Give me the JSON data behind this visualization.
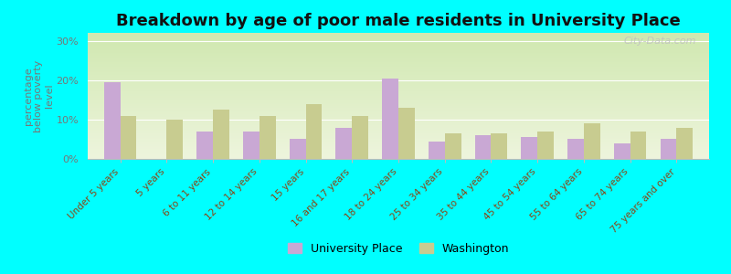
{
  "title": "Breakdown by age of poor male residents in University Place",
  "categories": [
    "Under 5 years",
    "5 years",
    "6 to 11 years",
    "12 to 14 years",
    "15 years",
    "16 and 17 years",
    "18 to 24 years",
    "25 to 34 years",
    "35 to 44 years",
    "45 to 54 years",
    "55 to 64 years",
    "65 to 74 years",
    "75 years and over"
  ],
  "university_place": [
    19.5,
    0.0,
    7.0,
    7.0,
    5.0,
    8.0,
    20.5,
    4.5,
    6.0,
    5.5,
    5.0,
    4.0,
    5.0
  ],
  "washington": [
    11.0,
    10.0,
    12.5,
    11.0,
    14.0,
    11.0,
    13.0,
    6.5,
    6.5,
    7.0,
    9.0,
    7.0,
    8.0
  ],
  "color_up": "#c9a8d4",
  "color_wa": "#c8cc90",
  "ylabel_lines": [
    "percentage",
    "below poverty",
    "level"
  ],
  "ylim": [
    0,
    32
  ],
  "yticks": [
    0,
    10,
    20,
    30
  ],
  "ytick_labels": [
    "0%",
    "10%",
    "20%",
    "30%"
  ],
  "bg_color": "#00FFFF",
  "plot_grad_top": "#d0e8b0",
  "plot_grad_bottom": "#eef5dd",
  "watermark": "City-Data.com",
  "legend_labels": [
    "University Place",
    "Washington"
  ],
  "bar_width": 0.35,
  "tick_color": "#8B4513",
  "label_color": "#777777",
  "grid_color": "#ffffff",
  "title_fontsize": 13,
  "axis_fontsize": 8,
  "xtick_fontsize": 7.5,
  "watermark_color": "#c0c0c0"
}
